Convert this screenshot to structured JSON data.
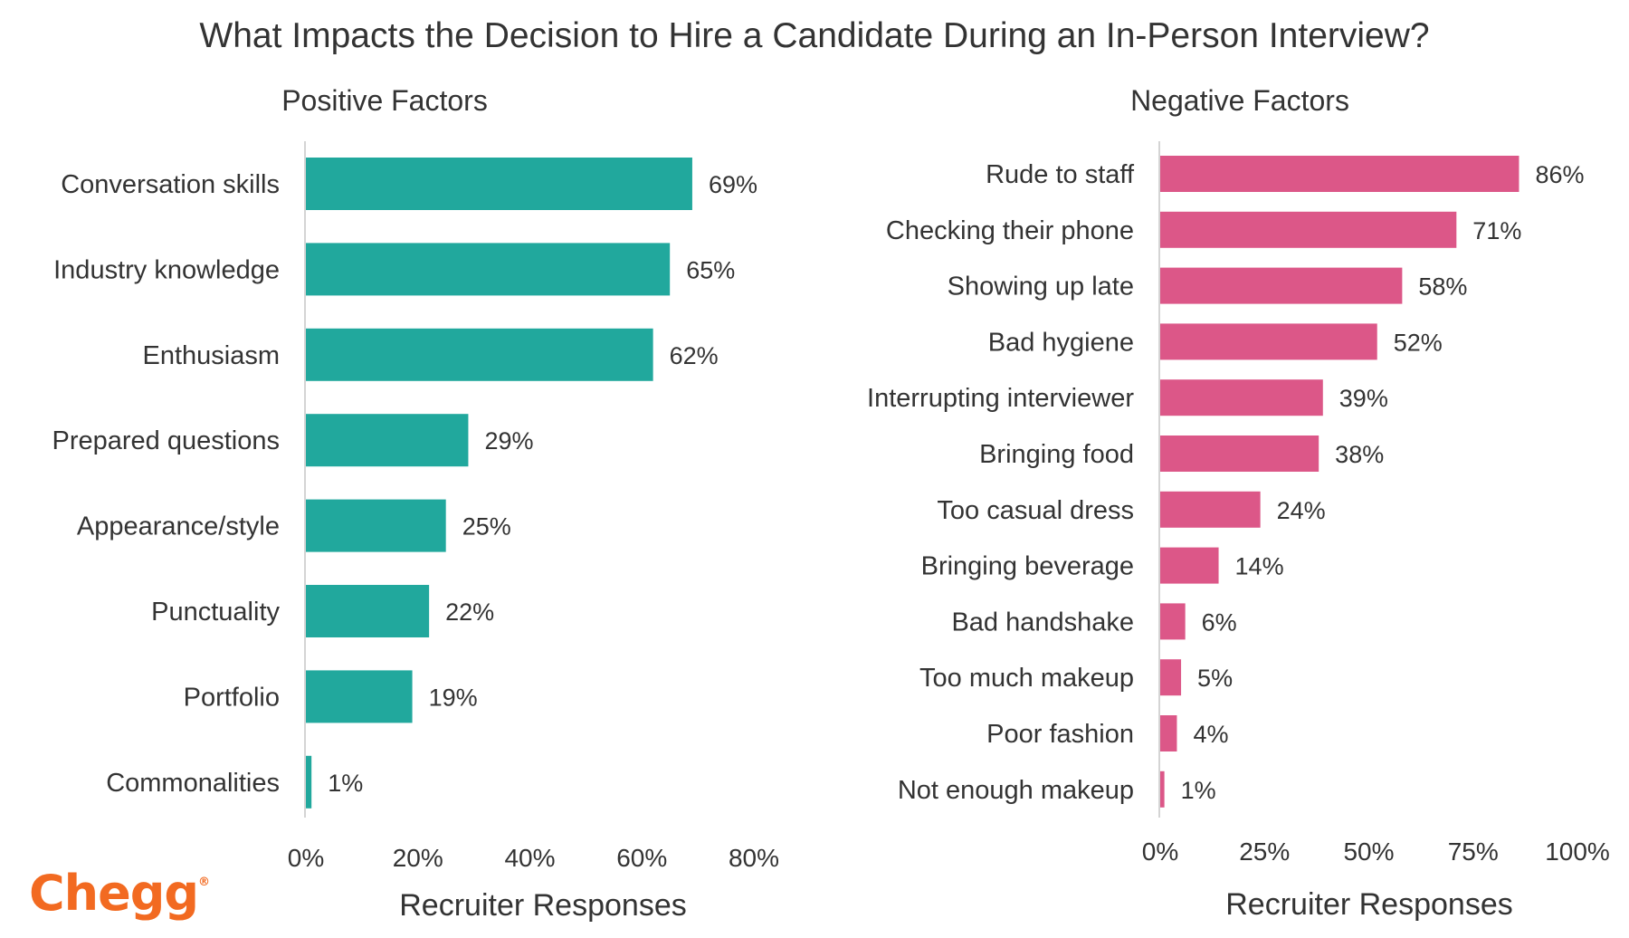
{
  "title": "What Impacts the Decision to Hire a Candidate During an In-Person Interview?",
  "logo": {
    "text": "Chegg",
    "mark": "®"
  },
  "colors": {
    "positive": "#21a89d",
    "negative": "#dc5788",
    "text": "#333333",
    "axis": "#d4d4d4"
  },
  "chart_data": [
    {
      "type": "bar",
      "orientation": "horizontal",
      "title": "Positive Factors",
      "categories": [
        "Conversation skills",
        "Industry knowledge",
        "Enthusiasm",
        "Prepared questions",
        "Appearance/style",
        "Punctuality",
        "Portfolio",
        "Commonalities"
      ],
      "values": [
        69,
        65,
        62,
        29,
        25,
        22,
        19,
        1
      ],
      "value_labels": [
        "69%",
        "65%",
        "62%",
        "29%",
        "25%",
        "22%",
        "19%",
        "1%"
      ],
      "xlabel": "Recruiter Responses",
      "xlim": [
        0,
        80
      ],
      "ticks": [
        0,
        20,
        40,
        60,
        80
      ],
      "tick_labels": [
        "0%",
        "20%",
        "40%",
        "60%",
        "80%"
      ],
      "grid": false,
      "color": "#21a89d"
    },
    {
      "type": "bar",
      "orientation": "horizontal",
      "title": "Negative Factors",
      "categories": [
        "Rude to staff",
        "Checking their phone",
        "Showing up late",
        "Bad hygiene",
        "Interrupting interviewer",
        "Bringing food",
        "Too casual dress",
        "Bringing beverage",
        "Bad handshake",
        "Too much makeup",
        "Poor fashion",
        "Not enough makeup"
      ],
      "values": [
        86,
        71,
        58,
        52,
        39,
        38,
        24,
        14,
        6,
        5,
        4,
        1
      ],
      "value_labels": [
        "86%",
        "71%",
        "58%",
        "52%",
        "39%",
        "38%",
        "24%",
        "14%",
        "6%",
        "5%",
        "4%",
        "1%"
      ],
      "xlabel": "Recruiter Responses",
      "xlim": [
        0,
        100
      ],
      "ticks": [
        0,
        25,
        50,
        75,
        100
      ],
      "tick_labels": [
        "0%",
        "25%",
        "50%",
        "75%",
        "100%"
      ],
      "grid": false,
      "color": "#dc5788"
    }
  ]
}
